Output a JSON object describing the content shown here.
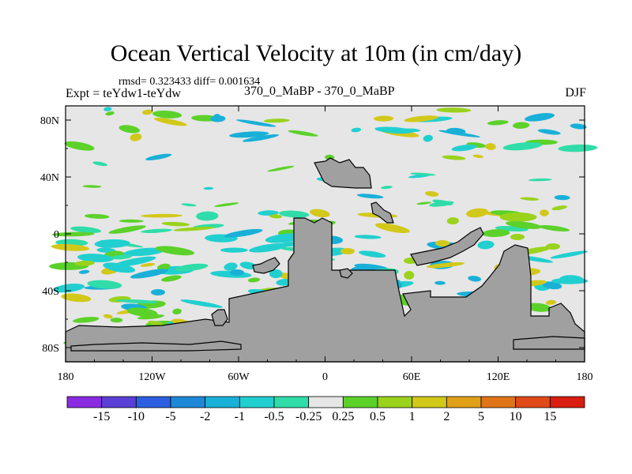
{
  "chart_data": {
    "type": "heatmap",
    "title": "Ocean Vertical Velocity at 10m (in cm/day)",
    "left_annotation": "Expt = teYdw1-teYdw",
    "center_annotation": "370_0_MaBP - 370_0_MaBP",
    "right_annotation": "DJF",
    "stats": "rmsd= 0.323433 diff= 0.001634",
    "xlim": [
      -180,
      180
    ],
    "ylim": [
      -90,
      90
    ],
    "xticks": [
      {
        "value": -180,
        "label": "180"
      },
      {
        "value": -120,
        "label": "120W"
      },
      {
        "value": -60,
        "label": "60W"
      },
      {
        "value": 0,
        "label": "0"
      },
      {
        "value": 60,
        "label": "60E"
      },
      {
        "value": 120,
        "label": "120E"
      },
      {
        "value": 180,
        "label": "180"
      }
    ],
    "yticks": [
      {
        "value": 80,
        "label": "80N"
      },
      {
        "value": 40,
        "label": "40N"
      },
      {
        "value": 0,
        "label": "0"
      },
      {
        "value": -40,
        "label": "40S"
      },
      {
        "value": -80,
        "label": "80S"
      }
    ],
    "colorbar": {
      "levels": [
        "-15",
        "-10",
        "-5",
        "-2",
        "-1",
        "-0.5",
        "-0.25",
        "0.25",
        "0.5",
        "1",
        "2",
        "5",
        "10",
        "15"
      ],
      "colors": [
        "#8a2be2",
        "#5a3fd6",
        "#2c5fe0",
        "#1e88d8",
        "#19b0d8",
        "#22cfd0",
        "#30dca8",
        "#e6e6e6",
        "#5cd12a",
        "#9ad21c",
        "#d2c81a",
        "#e0a018",
        "#e07418",
        "#e04a18",
        "#d81e10"
      ]
    },
    "land_color": "#a0a0a0",
    "zero_band_color": "#e6e6e6"
  }
}
